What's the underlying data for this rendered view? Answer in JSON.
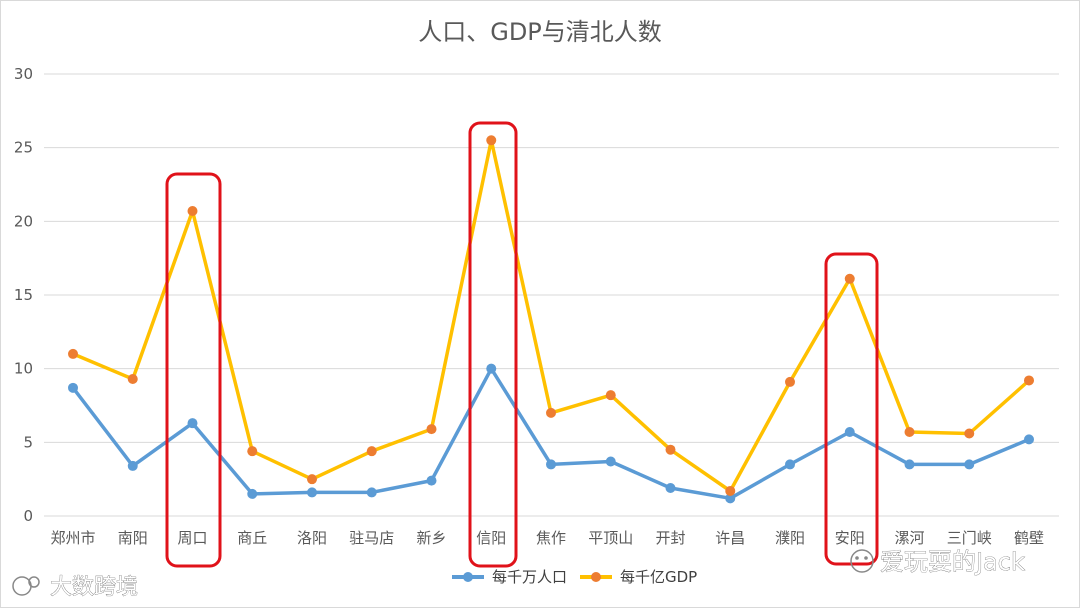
{
  "chart_data": {
    "type": "line",
    "title": "人口、GDP与清北人数",
    "categories": [
      "郑州市",
      "南阳",
      "周口",
      "商丘",
      "洛阳",
      "驻马店",
      "新乡",
      "信阳",
      "焦作",
      "平顶山",
      "开封",
      "许昌",
      "濮阳",
      "安阳",
      "漯河",
      "三门峡",
      "鹤壁"
    ],
    "series": [
      {
        "name": "每千万人口",
        "color": "#5B9BD5",
        "values": [
          8.7,
          3.4,
          6.3,
          1.5,
          1.6,
          1.6,
          2.4,
          10.0,
          3.5,
          3.7,
          1.9,
          1.2,
          3.5,
          5.7,
          3.5,
          3.5,
          5.2
        ]
      },
      {
        "name": "每千亿GDP",
        "color": "#FFC000",
        "values": [
          11.0,
          9.3,
          20.7,
          4.4,
          2.5,
          4.4,
          5.9,
          25.5,
          7.0,
          8.2,
          4.5,
          1.7,
          9.1,
          16.1,
          5.7,
          5.6,
          9.2
        ]
      }
    ],
    "ylim": [
      0,
      30
    ],
    "yticks": [
      0,
      5,
      10,
      15,
      20,
      25,
      30
    ],
    "grid": true,
    "legend": "bottom",
    "highlighted_categories": [
      "周口",
      "信阳",
      "安阳"
    ],
    "highlight_color": "#E0121A"
  },
  "watermarks": {
    "left": "大数跨境",
    "right": "爱玩耍的Jack"
  }
}
